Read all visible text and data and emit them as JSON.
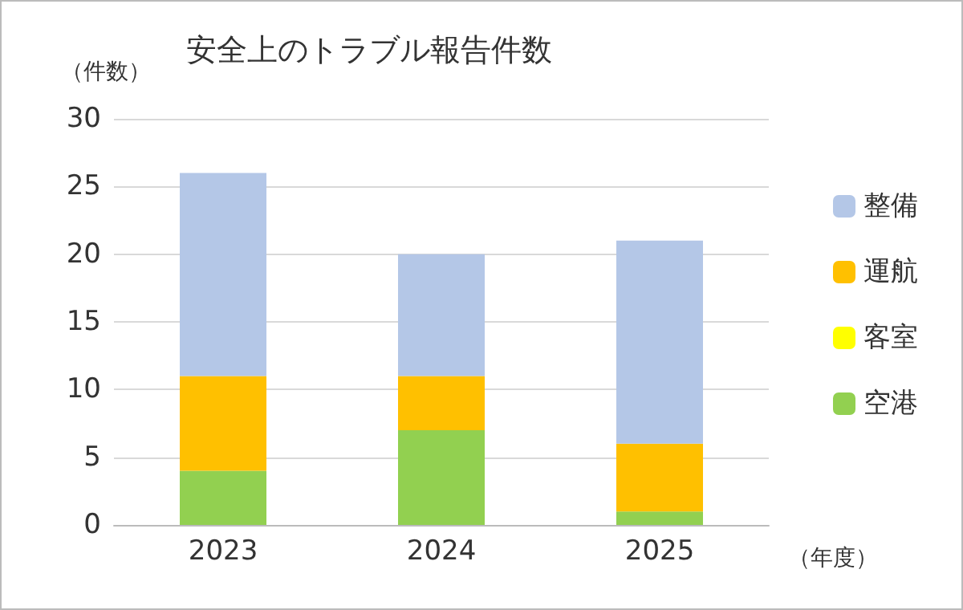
{
  "chart_data": {
    "type": "bar",
    "title": "安全上のトラブル報告件数",
    "xlabel": "（年度）",
    "ylabel": "（件数）",
    "categories": [
      "2023",
      "2024",
      "2025"
    ],
    "stacked": true,
    "series": [
      {
        "name": "空港",
        "color": "#92d050",
        "values": [
          4,
          7,
          1
        ]
      },
      {
        "name": "客室",
        "color": "#ffff00",
        "values": [
          0,
          0,
          0
        ]
      },
      {
        "name": "運航",
        "color": "#ffc000",
        "values": [
          7,
          4,
          5
        ]
      },
      {
        "name": "整備",
        "color": "#b4c7e7",
        "values": [
          15,
          9,
          15
        ]
      }
    ],
    "ylim": [
      0,
      30
    ],
    "yticks": [
      0,
      5,
      10,
      15,
      20,
      25,
      30
    ],
    "grid": "y",
    "legend": "right"
  }
}
